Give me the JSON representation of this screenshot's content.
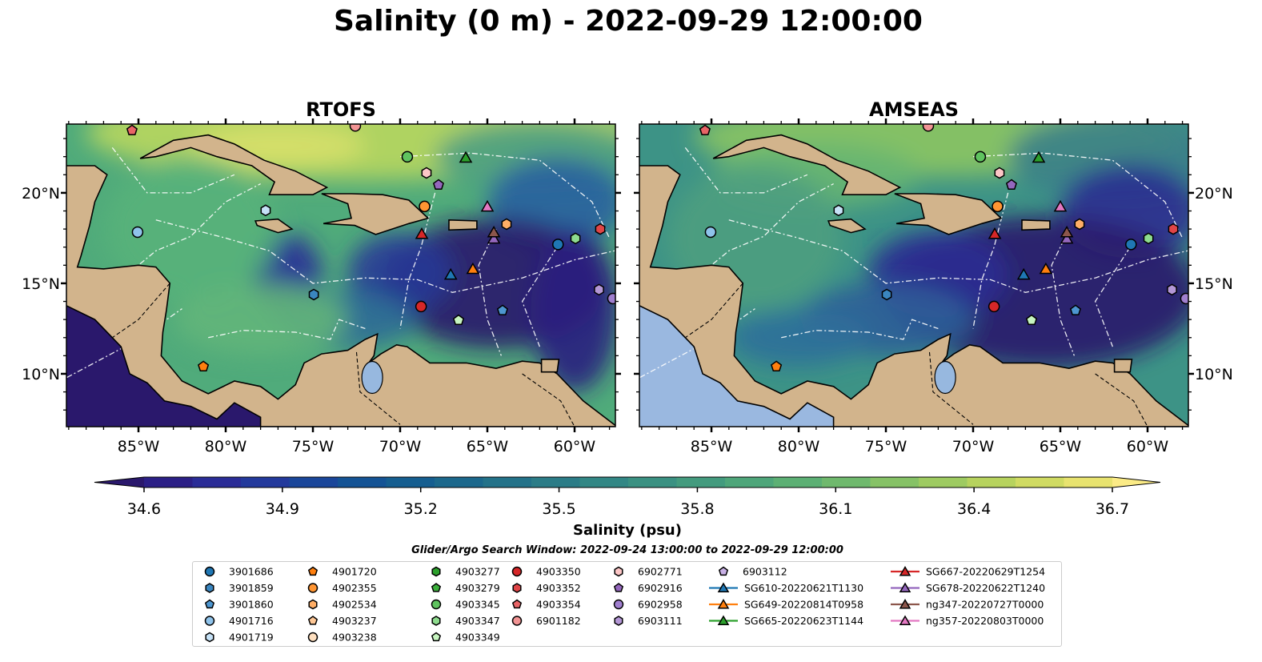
{
  "title": "Salinity (0 m) - 2022-09-29 12:00:00",
  "panels": [
    {
      "title": "RTOFS",
      "model": "rtofs"
    },
    {
      "title": "AMSEAS",
      "model": "amseas"
    }
  ],
  "chart_data": {
    "type": "map",
    "title": "Salinity (0 m) - 2022-09-29 12:00:00",
    "extent": {
      "lon": [
        -89.13,
        -57.66
      ],
      "lat": [
        7.08,
        23.8
      ]
    },
    "lon_ticks": [
      -85,
      -80,
      -75,
      -70,
      -65,
      -60
    ],
    "lon_tick_labels": [
      "85°W",
      "80°W",
      "75°W",
      "70°W",
      "65°W",
      "60°W"
    ],
    "lat_ticks": [
      10,
      15,
      20
    ],
    "lat_tick_labels": [
      "10°N",
      "15°N",
      "20°N"
    ],
    "colorbar": {
      "label": "Salinity (psu)",
      "range": [
        34.6,
        36.7
      ],
      "ticks": [
        34.6,
        34.9,
        35.2,
        35.5,
        35.8,
        36.1,
        36.4,
        36.7
      ],
      "tick_labels": [
        "34.6",
        "34.9",
        "35.2",
        "35.5",
        "35.8",
        "36.1",
        "36.4",
        "36.7"
      ],
      "extend": "both",
      "colors": [
        "#2a186c",
        "#2b1f86",
        "#2a2c97",
        "#23399c",
        "#1a469a",
        "#145395",
        "#155e90",
        "#1b688c",
        "#237289",
        "#2b7c87",
        "#328785",
        "#3a9182",
        "#439b7e",
        "#4ea67a",
        "#5cb074",
        "#6fb96d",
        "#86c266",
        "#9ecb61",
        "#b7d35e",
        "#d0db62",
        "#e8e36f",
        "#fbeb86"
      ]
    },
    "search_window": "Glider/Argo Search Window: 2022-09-24 13:00:00 to 2022-09-29 12:00:00",
    "observations": [
      {
        "id": "4903354",
        "lon": -85.37,
        "lat": 23.45
      },
      {
        "id": "6901182",
        "lon": -72.57,
        "lat": 23.7
      },
      {
        "id": "4903345",
        "lon": -69.59,
        "lat": 21.99
      },
      {
        "id": "SG665-20220623T1144",
        "lon": -66.24,
        "lat": 21.95
      },
      {
        "id": "6902771",
        "lon": -68.49,
        "lat": 21.1
      },
      {
        "id": "6902916",
        "lon": -67.8,
        "lat": 20.44
      },
      {
        "id": "4902355",
        "lon": -68.6,
        "lat": 19.25
      },
      {
        "id": "ng357-20220803T0000",
        "lon": -65.0,
        "lat": 19.25
      },
      {
        "id": "4901719",
        "lon": -77.71,
        "lat": 19.03
      },
      {
        "id": "4901716",
        "lon": -85.05,
        "lat": 17.83
      },
      {
        "id": "SG667-20220629T1254",
        "lon": -68.76,
        "lat": 17.74
      },
      {
        "id": "4902534",
        "lon": -63.9,
        "lat": 18.27
      },
      {
        "id": "SG678-20220622T1240",
        "lon": -64.63,
        "lat": 17.48
      },
      {
        "id": "ng347-20220727T0000",
        "lon": -64.63,
        "lat": 17.83
      },
      {
        "id": "3901686",
        "lon": -60.95,
        "lat": 17.15
      },
      {
        "id": "4903347",
        "lon": -59.95,
        "lat": 17.48
      },
      {
        "id": "4903352",
        "lon": -58.53,
        "lat": 18.0
      },
      {
        "id": "SG610-20220621T1130",
        "lon": -67.1,
        "lat": 15.49
      },
      {
        "id": "SG649-20220814T0958",
        "lon": -65.83,
        "lat": 15.8
      },
      {
        "id": "3901859",
        "lon": -74.95,
        "lat": 14.38
      },
      {
        "id": "4903350",
        "lon": -68.8,
        "lat": 13.72
      },
      {
        "id": "6903111",
        "lon": -58.6,
        "lat": 14.65
      },
      {
        "id": "6902958",
        "lon": -57.8,
        "lat": 14.16
      },
      {
        "id": "4903349",
        "lon": -66.65,
        "lat": 12.96
      },
      {
        "id": "3901860",
        "lon": -64.13,
        "lat": 13.5
      },
      {
        "id": "4901720",
        "lon": -81.28,
        "lat": 10.4
      }
    ]
  },
  "legend": {
    "entries": [
      {
        "label": "3901686",
        "color": "#1f77b4",
        "marker": "circle"
      },
      {
        "label": "3901859",
        "color": "#3a86c0",
        "marker": "hexagon"
      },
      {
        "label": "3901860",
        "color": "#4d96d0",
        "marker": "pentagon"
      },
      {
        "label": "4901716",
        "color": "#8fc3eb",
        "marker": "circle"
      },
      {
        "label": "4901719",
        "color": "#c6e2f7",
        "marker": "hexagon"
      },
      {
        "label": "4901720",
        "color": "#ff7f0e",
        "marker": "pentagon"
      },
      {
        "label": "4902355",
        "color": "#ff9532",
        "marker": "circle"
      },
      {
        "label": "4902534",
        "color": "#ffae66",
        "marker": "hexagon"
      },
      {
        "label": "4903237",
        "color": "#ffc896",
        "marker": "pentagon"
      },
      {
        "label": "4903238",
        "color": "#ffe0c0",
        "marker": "circle"
      },
      {
        "label": "4903277",
        "color": "#2ca02c",
        "marker": "hexagon"
      },
      {
        "label": "4903279",
        "color": "#3cb03c",
        "marker": "pentagon"
      },
      {
        "label": "4903345",
        "color": "#5fc35f",
        "marker": "circle"
      },
      {
        "label": "4903347",
        "color": "#8edc8e",
        "marker": "hexagon"
      },
      {
        "label": "4903349",
        "color": "#c7f5c0",
        "marker": "pentagon"
      },
      {
        "label": "4903350",
        "color": "#d62728",
        "marker": "circle"
      },
      {
        "label": "4903352",
        "color": "#e04547",
        "marker": "hexagon"
      },
      {
        "label": "4903354",
        "color": "#e86466",
        "marker": "pentagon"
      },
      {
        "label": "6901182",
        "color": "#f29494",
        "marker": "circle"
      },
      {
        "label": "6902771",
        "color": "#fcc6c6",
        "marker": "hexagon"
      },
      {
        "label": "6902916",
        "color": "#9467bd",
        "marker": "pentagon"
      },
      {
        "label": "6902958",
        "color": "#a07fcf",
        "marker": "circle"
      },
      {
        "label": "6903111",
        "color": "#b497d6",
        "marker": "hexagon"
      },
      {
        "label": "6903112",
        "color": "#c9b1e6",
        "marker": "pentagon"
      },
      {
        "label": "SG610-20220621T1130",
        "color": "#1f77b4",
        "marker": "triangle",
        "line": true
      },
      {
        "label": "SG649-20220814T0958",
        "color": "#ff7f0e",
        "marker": "triangle",
        "line": true
      },
      {
        "label": "SG665-20220623T1144",
        "color": "#2ca02c",
        "marker": "triangle",
        "line": true
      },
      {
        "label": "SG667-20220629T1254",
        "color": "#d62728",
        "marker": "triangle",
        "line": true
      },
      {
        "label": "SG678-20220622T1240",
        "color": "#9467bd",
        "marker": "triangle",
        "line": true
      },
      {
        "label": "ng347-20220727T0000",
        "color": "#8c564b",
        "marker": "triangle",
        "line": true
      },
      {
        "label": "ng357-20220803T0000",
        "color": "#e377c2",
        "marker": "triangle",
        "line": true
      }
    ]
  }
}
